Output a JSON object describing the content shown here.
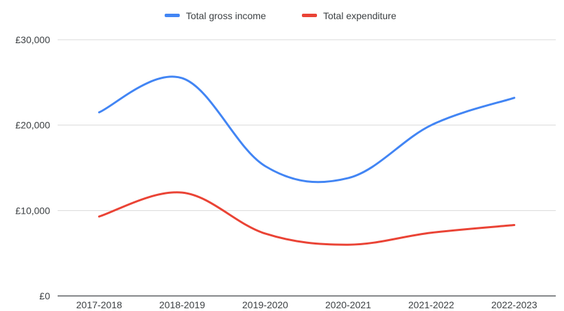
{
  "chart_data": {
    "type": "line",
    "categories": [
      "2017-2018",
      "2018-2019",
      "2019-2020",
      "2020-2021",
      "2021-2022",
      "2022-2023"
    ],
    "series": [
      {
        "name": "Total gross income",
        "color": "#4285f4",
        "values": [
          21500,
          25500,
          15200,
          13800,
          20000,
          23200
        ]
      },
      {
        "name": "Total expenditure",
        "color": "#ea4335",
        "values": [
          9300,
          12100,
          7300,
          6000,
          7400,
          8300
        ]
      }
    ],
    "y_ticks": [
      "£0",
      "£10,000",
      "£20,000",
      "£30,000"
    ],
    "y_tick_values": [
      0,
      10000,
      20000,
      30000
    ],
    "ylim": [
      0,
      30000
    ],
    "grid": true,
    "legend_position": "top-center",
    "smooth": true
  }
}
